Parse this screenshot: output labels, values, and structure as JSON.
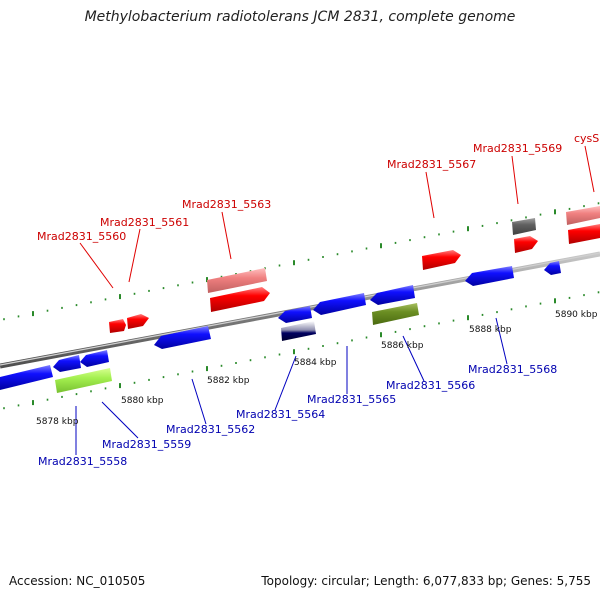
{
  "title": "Methylobacterium radiotolerans JCM 2831, complete genome",
  "footer": {
    "accession": "Accession: NC_010505",
    "summary": "Topology: circular; Length: 6,077,833 bp; Genes: 5,755"
  },
  "colors": {
    "forward": "#ff0000",
    "reverse": "#0000ff",
    "light_red": "#f08080",
    "gray": "#606060",
    "light_green": "#a4f050",
    "olive": "#6b8e23",
    "navy": "#000060",
    "backbone": "#808080",
    "tick": "#2a8a2a",
    "forward_label": "#cc0000",
    "reverse_label": "#0000b0"
  },
  "kbp_labels": [
    "5878 kbp",
    "5880 kbp",
    "5882 kbp",
    "5884 kbp",
    "5886 kbp",
    "5888 kbp",
    "5890 kbp"
  ],
  "gene_labels": {
    "forward": [
      "Mrad2831_5560",
      "Mrad2831_5561",
      "Mrad2831_5563",
      "Mrad2831_5567",
      "Mrad2831_5569",
      "cysS"
    ],
    "reverse": [
      "Mrad2831_5558",
      "Mrad2831_5559",
      "Mrad2831_5562",
      "Mrad2831_5564",
      "Mrad2831_5565",
      "Mrad2831_5566",
      "Mrad2831_5568"
    ]
  }
}
